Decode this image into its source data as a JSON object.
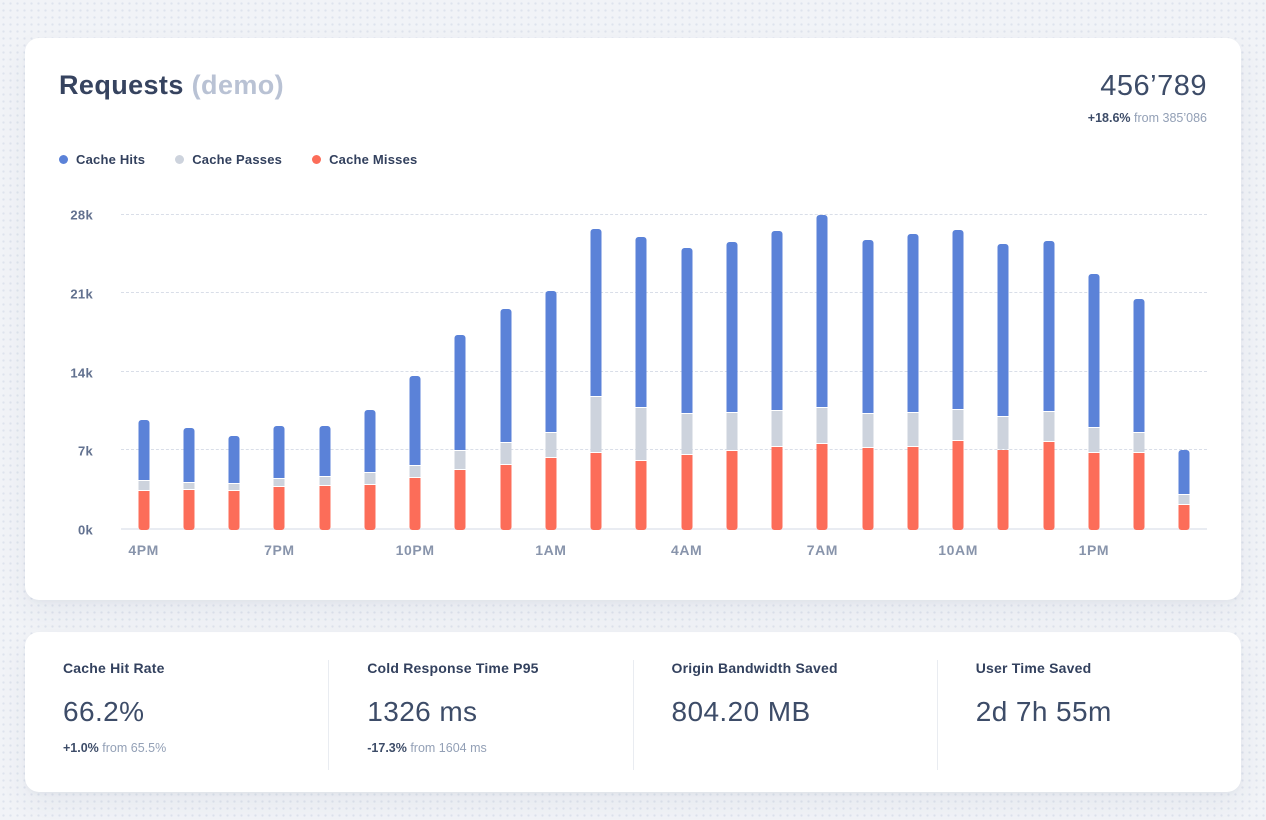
{
  "header": {
    "title": "Requests",
    "subtitle": "(demo)",
    "total": "456’789",
    "delta": "+18.6%",
    "delta_from": "from 385’086"
  },
  "colors": {
    "cache_hits": "#5b82d8",
    "cache_passes": "#cdd3dd",
    "cache_misses": "#fc6d59",
    "text_primary": "#36435f",
    "text_muted": "#93a0b6",
    "gridline": "#d9dee8",
    "card_bg": "#ffffff",
    "page_bg": "#f1f3f7"
  },
  "chart_data": {
    "type": "bar",
    "stacked": true,
    "title": "Requests (demo)",
    "xlabel": "",
    "ylabel": "",
    "ylim": [
      0,
      28000
    ],
    "grid": "horizontal-dashed",
    "legend_position": "top-left",
    "x": [
      "4PM",
      "5PM",
      "6PM",
      "7PM",
      "8PM",
      "9PM",
      "10PM",
      "11PM",
      "12AM",
      "1AM",
      "2AM",
      "3AM",
      "4AM",
      "5AM",
      "6AM",
      "7AM",
      "8AM",
      "9AM",
      "10AM",
      "11AM",
      "12PM",
      "1PM",
      "2PM",
      "3PM"
    ],
    "x_tick_every": 3,
    "x_tick_labels_shown": [
      "4PM",
      "7PM",
      "10PM",
      "1AM",
      "4AM",
      "7AM",
      "10AM",
      "1PM"
    ],
    "y_ticks": [
      {
        "label": "0k",
        "value": 0
      },
      {
        "label": "7k",
        "value": 7000
      },
      {
        "label": "14k",
        "value": 14000
      },
      {
        "label": "21k",
        "value": 21000
      },
      {
        "label": "28k",
        "value": 28000
      }
    ],
    "series": [
      {
        "name": "Cache Misses",
        "color": "#fc6d59",
        "values": [
          3500,
          3600,
          3500,
          3800,
          3900,
          4000,
          4600,
          5300,
          5800,
          6400,
          6800,
          6100,
          6700,
          7000,
          7400,
          7600,
          7300,
          7400,
          7900,
          7100,
          7800,
          6800,
          6800,
          2200
        ]
      },
      {
        "name": "Cache Passes",
        "color": "#cdd3dd",
        "values": [
          800,
          500,
          500,
          600,
          700,
          1000,
          1000,
          1600,
          1900,
          2100,
          4900,
          4600,
          3600,
          3300,
          3100,
          3100,
          2900,
          2900,
          2700,
          2800,
          2600,
          2100,
          1700,
          800
        ]
      },
      {
        "name": "Cache Hits",
        "color": "#5b82d8",
        "values": [
          5300,
          4800,
          4200,
          4600,
          4400,
          5500,
          7900,
          10200,
          11800,
          12500,
          14800,
          15100,
          14700,
          15100,
          15900,
          17100,
          15400,
          15800,
          15900,
          15300,
          15100,
          13600,
          11800,
          3900
        ]
      }
    ]
  },
  "legend_order": [
    "Cache Hits",
    "Cache Passes",
    "Cache Misses"
  ],
  "stats": [
    {
      "label": "Cache Hit Rate",
      "value": "66.2%",
      "delta": "+1.0%",
      "delta_from": "from 65.5%"
    },
    {
      "label": "Cold Response Time P95",
      "value": "1326 ms",
      "delta": "-17.3%",
      "delta_from": "from 1604 ms"
    },
    {
      "label": "Origin Bandwidth Saved",
      "value": "804.20 MB"
    },
    {
      "label": "User Time Saved",
      "value": "2d 7h 55m"
    }
  ]
}
